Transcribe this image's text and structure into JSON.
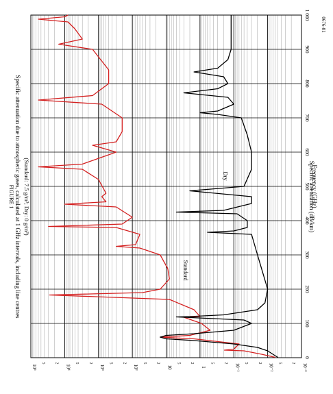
{
  "figure": {
    "label": "FIGURE 1",
    "title": "Specific attenuation due to atmospheric gases, calculated at 1 GHz intervals, including line centres",
    "subtitle": "(Standard: 7.5 g/m³; Dry: 0 g/m³)",
    "code": "0676-01"
  },
  "chart_data": {
    "type": "line",
    "xlabel": "Frequency (GHz)",
    "ylabel": "Specific attenuation (dB/km)",
    "xlim": [
      0,
      1000
    ],
    "ylim": [
      0.001,
      100000
    ],
    "yscale": "log",
    "grid": true,
    "x_ticks": [
      0,
      100,
      200,
      300,
      400,
      500,
      600,
      700,
      800,
      900,
      1000
    ],
    "x_tick_labels": [
      "0",
      "100",
      "200",
      "300",
      "400",
      "500",
      "600",
      "700",
      "800",
      "900",
      "1 000"
    ],
    "y_ticks": [
      0.001,
      0.01,
      0.1,
      1,
      10,
      100,
      1000,
      10000,
      100000
    ],
    "y_tick_labels": [
      "10⁻³",
      "10⁻²",
      "10⁻¹",
      "1",
      "10",
      "10²",
      "10³",
      "10⁴",
      "10⁵"
    ],
    "y_minor_labels": [
      "2",
      "5"
    ],
    "series": [
      {
        "name": "Standard",
        "color": "#d42020",
        "x": [
          1,
          10,
          20,
          22,
          25,
          40,
          55,
          60,
          65,
          80,
          100,
          118,
          119,
          120,
          140,
          170,
          183,
          190,
          200,
          230,
          260,
          300,
          320,
          325,
          330,
          360,
          380,
          383,
          390,
          410,
          440,
          448,
          455,
          470,
          480,
          520,
          550,
          557,
          565,
          600,
          620,
          630,
          660,
          700,
          740,
          752,
          765,
          800,
          840,
          900,
          915,
          930,
          960,
          980,
          988,
          995,
          1000
        ],
        "y": [
          0.006,
          0.015,
          0.05,
          0.19,
          0.1,
          0.07,
          1.5,
          15,
          2,
          0.5,
          0.9,
          3,
          2,
          1,
          1.5,
          8,
          28000,
          50,
          15,
          8,
          9,
          15,
          60,
          300,
          80,
          60,
          300,
          30000,
          200,
          100,
          300,
          10000,
          600,
          800,
          600,
          1000,
          3000,
          60000,
          3000,
          300,
          1500,
          300,
          200,
          200,
          800,
          60000,
          1500,
          500,
          500,
          1500,
          15000,
          3000,
          5000,
          8000,
          60000,
          10000,
          8000
        ]
      },
      {
        "name": "Dry",
        "color": "#000000",
        "x": [
          1,
          10,
          20,
          30,
          40,
          50,
          55,
          60,
          65,
          70,
          80,
          100,
          110,
          118,
          119,
          120,
          125,
          140,
          160,
          200,
          300,
          360,
          366,
          370,
          380,
          400,
          420,
          425,
          430,
          450,
          470,
          487,
          500,
          550,
          600,
          650,
          700,
          710,
          715,
          720,
          740,
          760,
          773,
          785,
          800,
          820,
          834,
          845,
          870,
          900,
          1000
        ],
        "y": [
          0.005,
          0.007,
          0.01,
          0.02,
          0.1,
          1.5,
          10,
          15,
          10,
          1.5,
          0.1,
          0.03,
          0.05,
          3,
          5,
          2,
          0.2,
          0.02,
          0.012,
          0.01,
          0.02,
          0.03,
          0.6,
          0.1,
          0.04,
          0.04,
          0.08,
          5,
          0.2,
          0.03,
          0.03,
          2,
          0.05,
          0.03,
          0.03,
          0.04,
          0.06,
          0.3,
          1,
          0.3,
          0.1,
          0.15,
          3,
          0.3,
          0.15,
          0.2,
          1.5,
          0.3,
          0.15,
          0.12,
          0.12
        ]
      }
    ],
    "annotations": [
      {
        "text": "Standard",
        "x": 255,
        "y": 3,
        "color": "#d42020"
      },
      {
        "text": "Dry",
        "x": 530,
        "y": 0.2,
        "color": "#000000"
      }
    ]
  }
}
